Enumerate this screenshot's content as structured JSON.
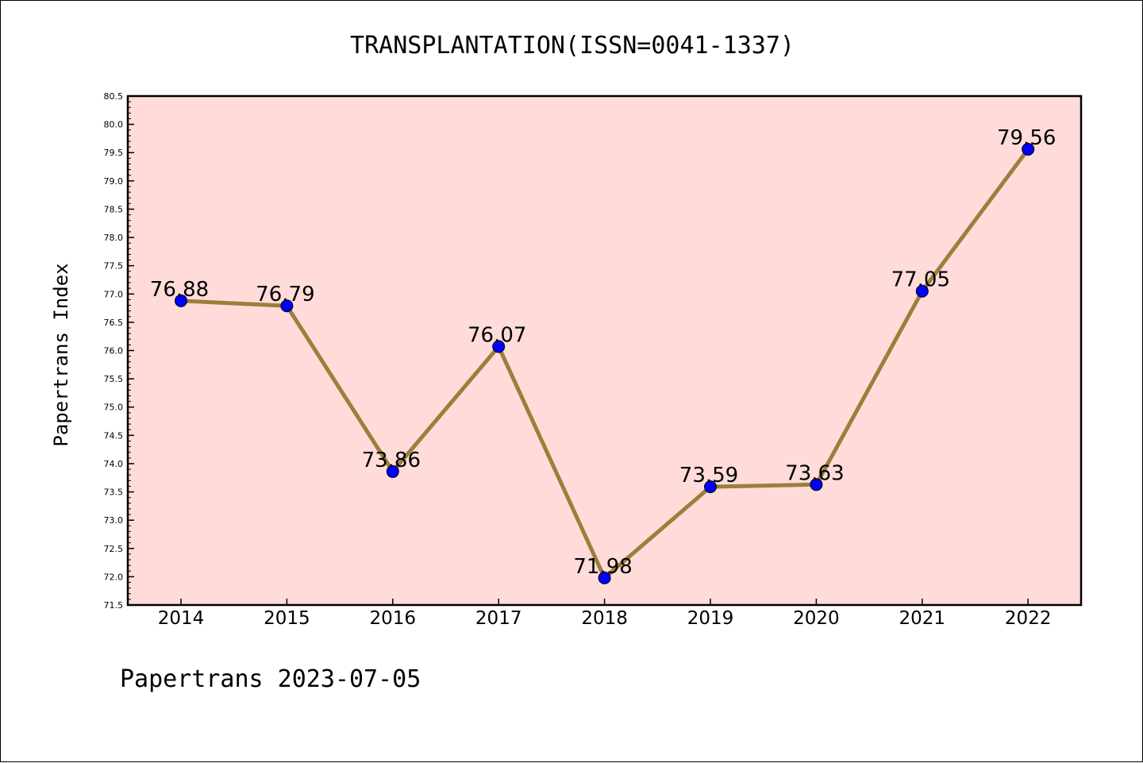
{
  "chart_data": {
    "type": "line",
    "title": "TRANSPLANTATION(ISSN=0041-1337)",
    "ylabel": "Papertrans Index",
    "xlabel": "",
    "categories": [
      "2014",
      "2015",
      "2016",
      "2017",
      "2018",
      "2019",
      "2020",
      "2021",
      "2022"
    ],
    "values": [
      76.88,
      76.79,
      73.86,
      76.07,
      71.98,
      73.59,
      73.63,
      77.05,
      79.56
    ],
    "data_labels": [
      "76.88",
      "76.79",
      "73.86",
      "76.07",
      "71.98",
      "73.59",
      "73.63",
      "77.05",
      "79.56"
    ],
    "ylim": [
      71.5,
      80.5
    ],
    "yticks": [
      "71.5",
      "72.0",
      "72.5",
      "73.0",
      "73.5",
      "74.0",
      "74.5",
      "75.0",
      "75.5",
      "76.0",
      "76.5",
      "77.0",
      "77.5",
      "78.0",
      "78.5",
      "79.0",
      "79.5",
      "80.0",
      "80.5"
    ],
    "grid": false,
    "colors": {
      "line": "#9B7F3A",
      "marker": "#0000FF",
      "plot_bg": "#FFDCDA"
    }
  },
  "footer": "Papertrans 2023-07-05"
}
